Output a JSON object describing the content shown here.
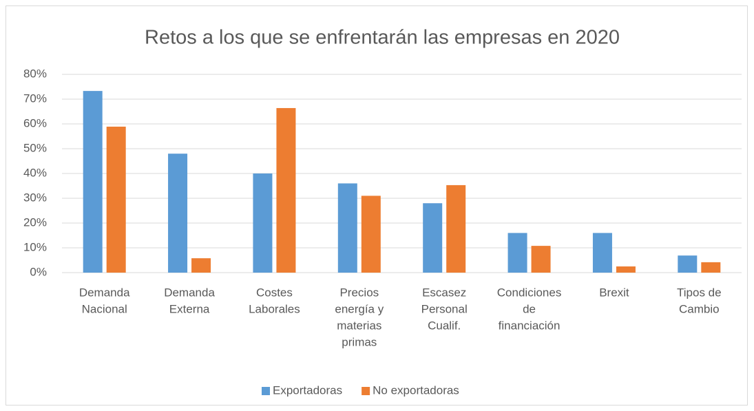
{
  "chart_data": {
    "type": "bar",
    "title": "Retos a los que se enfrentarán las empresas en 2020",
    "categories": [
      [
        "Demanda",
        "Nacional"
      ],
      [
        "Demanda",
        "Externa"
      ],
      [
        "Costes",
        "Laborales"
      ],
      [
        "Precios",
        "energía y",
        "materias",
        "primas"
      ],
      [
        "Escasez",
        "Personal",
        "Cualif."
      ],
      [
        "Condiciones",
        "de",
        "financiación"
      ],
      [
        "Brexit"
      ],
      [
        "Tipos de",
        "Cambio"
      ]
    ],
    "series": [
      {
        "name": "Exportadoras",
        "color": "#5b9bd5",
        "values": [
          73.3,
          48,
          40,
          36,
          28,
          16,
          16,
          6.9
        ]
      },
      {
        "name": "No exportadoras",
        "color": "#ed7d31",
        "values": [
          58.9,
          5.8,
          66.4,
          31,
          35.3,
          10.8,
          2.5,
          4.2
        ]
      }
    ],
    "ylim": [
      0,
      80
    ],
    "yticks": [
      {
        "value": 0,
        "label": "0%"
      },
      {
        "value": 10,
        "label": "10%"
      },
      {
        "value": 20,
        "label": "20%"
      },
      {
        "value": 30,
        "label": "30%"
      },
      {
        "value": 40,
        "label": "40%"
      },
      {
        "value": 50,
        "label": "50%"
      },
      {
        "value": 60,
        "label": "60%"
      },
      {
        "value": 70,
        "label": "70%"
      },
      {
        "value": 80,
        "label": "80%"
      }
    ],
    "grid": true,
    "legend": "bottom"
  }
}
